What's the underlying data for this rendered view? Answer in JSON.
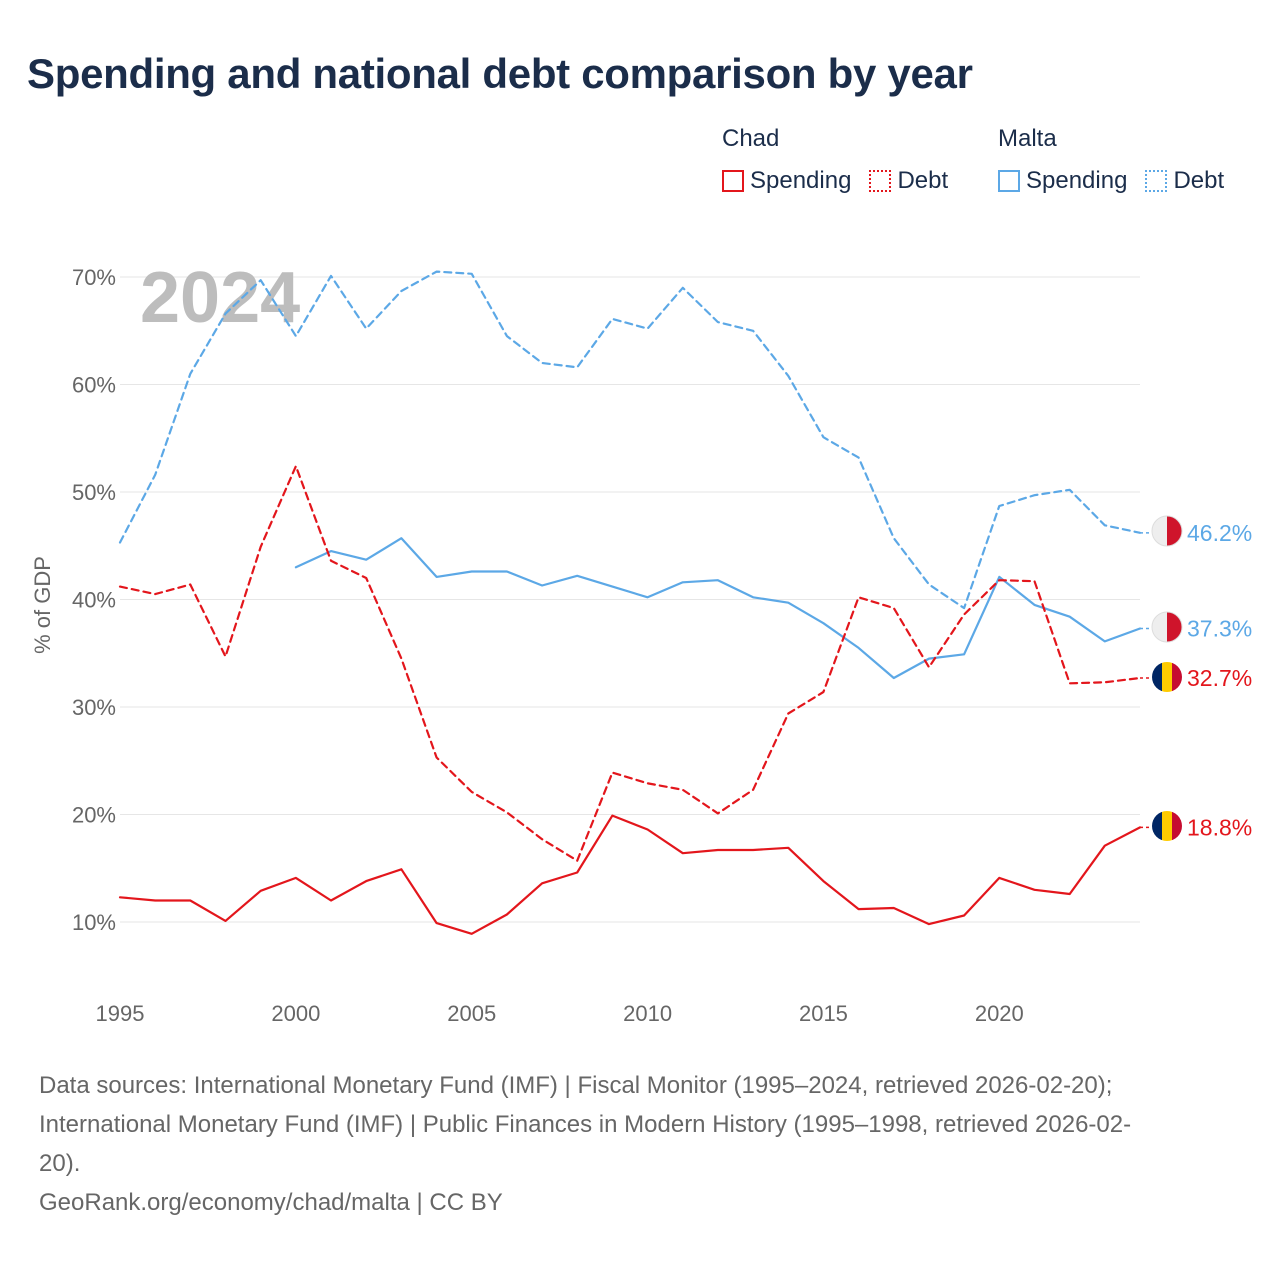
{
  "title": "Spending and national debt comparison by year",
  "legend": [
    {
      "group": "Chad",
      "items": [
        {
          "label": "Spending",
          "style": "solid",
          "color": "#e3161c"
        },
        {
          "label": "Debt",
          "style": "dotted",
          "color": "#e3161c"
        }
      ]
    },
    {
      "group": "Malta",
      "items": [
        {
          "label": "Spending",
          "style": "solid",
          "color": "#5ca8e6"
        },
        {
          "label": "Debt",
          "style": "dotted",
          "color": "#5ca8e6"
        }
      ]
    }
  ],
  "chart_data": {
    "type": "line",
    "year_watermark": "2024",
    "ylabel": "% of GDP",
    "xlabel": "",
    "xlim": [
      1995,
      2024
    ],
    "ylim": [
      5,
      72
    ],
    "x_ticks": [
      1995,
      2000,
      2005,
      2010,
      2015,
      2020
    ],
    "y_ticks": [
      10,
      20,
      30,
      40,
      50,
      60,
      70
    ],
    "y_tick_labels": [
      "10%",
      "20%",
      "30%",
      "40%",
      "50%",
      "60%",
      "70%"
    ],
    "grid": true,
    "x": [
      1995,
      1996,
      1997,
      1998,
      1999,
      2000,
      2001,
      2002,
      2003,
      2004,
      2005,
      2006,
      2007,
      2008,
      2009,
      2010,
      2011,
      2012,
      2013,
      2014,
      2015,
      2016,
      2017,
      2018,
      2019,
      2020,
      2021,
      2022,
      2023,
      2024
    ],
    "series": [
      {
        "name": "Malta Debt",
        "country": "Malta",
        "measure": "Debt",
        "dash": "dashed",
        "color": "#5ca8e6",
        "values": [
          45.3,
          51.6,
          61.0,
          66.6,
          69.7,
          64.5,
          70.1,
          65.2,
          68.7,
          70.5,
          70.3,
          64.5,
          62.0,
          61.6,
          66.1,
          65.2,
          69.0,
          65.8,
          65.0,
          60.8,
          55.1,
          53.2,
          45.7,
          41.4,
          39.2,
          48.7,
          49.7,
          50.2,
          46.9,
          46.2
        ],
        "end_label": "46.2%"
      },
      {
        "name": "Malta Spending",
        "country": "Malta",
        "measure": "Spending",
        "dash": "solid",
        "color": "#5ca8e6",
        "values": [
          null,
          null,
          null,
          null,
          null,
          43.0,
          44.5,
          43.7,
          45.7,
          42.1,
          42.6,
          42.6,
          41.3,
          42.2,
          41.2,
          40.2,
          41.6,
          41.8,
          40.2,
          39.7,
          37.8,
          35.5,
          32.7,
          34.5,
          34.9,
          42.1,
          39.5,
          38.4,
          36.1,
          37.3
        ],
        "end_label": "37.3%"
      },
      {
        "name": "Chad Debt",
        "country": "Chad",
        "measure": "Debt",
        "dash": "dashed",
        "color": "#e3161c",
        "values": [
          41.2,
          40.5,
          41.4,
          34.7,
          44.9,
          52.4,
          43.6,
          42.0,
          34.5,
          25.3,
          22.1,
          20.2,
          17.7,
          15.7,
          23.9,
          22.9,
          22.3,
          20.1,
          22.3,
          29.4,
          31.4,
          40.2,
          39.2,
          33.7,
          38.6,
          41.8,
          41.7,
          32.2,
          32.3,
          32.7
        ],
        "end_label": "32.7%"
      },
      {
        "name": "Chad Spending",
        "country": "Chad",
        "measure": "Spending",
        "dash": "solid",
        "color": "#e3161c",
        "values": [
          12.3,
          12.0,
          12.0,
          10.1,
          12.9,
          14.1,
          12.0,
          13.8,
          14.9,
          9.9,
          8.9,
          10.7,
          13.6,
          14.6,
          19.9,
          18.6,
          16.4,
          16.7,
          16.7,
          16.9,
          13.8,
          11.2,
          11.3,
          9.8,
          10.6,
          14.1,
          13.0,
          12.6,
          17.1,
          18.8
        ],
        "end_label": "18.8%"
      }
    ]
  },
  "sources": {
    "line1": "Data sources: International Monetary Fund (IMF) | Fiscal Monitor (1995–2024, retrieved 2026-02-20);",
    "line2": "International Monetary Fund (IMF) | Public Finances in Modern History (1995–1998, retrieved 2026-02-",
    "line3": "20).",
    "credit": "GeoRank.org/economy/chad/malta | CC BY"
  }
}
